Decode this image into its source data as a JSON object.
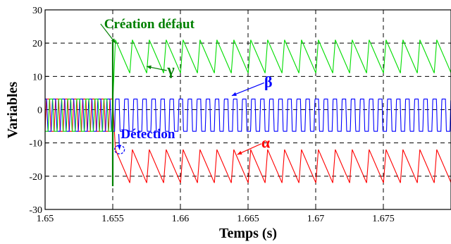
{
  "chart_data": {
    "type": "line",
    "title": "",
    "xlabel": "Temps (s)",
    "ylabel": "Variables",
    "xlim": [
      1.65,
      1.68
    ],
    "ylim": [
      -30,
      30
    ],
    "x_ticks": [
      "1.65",
      "1.655",
      "1.66",
      "1.665",
      "1.67",
      "1.675"
    ],
    "y_ticks": [
      "30",
      "20",
      "10",
      "0",
      "-10",
      "-20",
      "-30"
    ],
    "grid": true,
    "fault_time": 1.655,
    "series": [
      {
        "name": "α",
        "color": "#ff0000",
        "before_fault": {
          "period": 0.00067,
          "min": -6.5,
          "max": 3.2,
          "phase": 0.0
        },
        "after_fault": {
          "period": 0.00125,
          "min": -22,
          "max": -12
        }
      },
      {
        "name": "β",
        "color": "#0000ff",
        "before_fault": {
          "period": 0.00067,
          "min": -6.5,
          "max": 3.2,
          "phase": 0.333
        },
        "after_fault": {
          "period": 0.00067,
          "min": -6.5,
          "max": 3.2
        }
      },
      {
        "name": "γ",
        "color": "#00dd00",
        "before_fault": {
          "period": 0.00067,
          "min": -6.5,
          "max": 3.2,
          "phase": 0.667
        },
        "after_fault": {
          "period": 0.00125,
          "min": 11,
          "max": 21
        }
      },
      {
        "name": "",
        "color": "#008000",
        "spike": {
          "x": 1.655,
          "min": -23,
          "max": 20.5
        }
      }
    ],
    "annotations": [
      {
        "text": "Création défaut",
        "color": "#008000",
        "x": 1.6577,
        "y": 24.5,
        "arrow_to": [
          1.6552,
          20
        ]
      },
      {
        "text": "γ",
        "color": "#008000",
        "x": 1.6593,
        "y": 10.5,
        "arrow_to": [
          1.6575,
          13
        ]
      },
      {
        "text": "β",
        "color": "#0000ff",
        "x": 1.6665,
        "y": 6.8,
        "arrow_to": [
          1.6638,
          4.2
        ]
      },
      {
        "text": "Détection",
        "color": "#0000ff",
        "x": 1.6576,
        "y": -8.6,
        "arrow_to": [
          1.6555,
          -12
        ]
      },
      {
        "text": "α",
        "color": "#ff0000",
        "x": 1.6663,
        "y": -11.5,
        "arrow_to": [
          1.6642,
          -13.5
        ]
      }
    ]
  }
}
